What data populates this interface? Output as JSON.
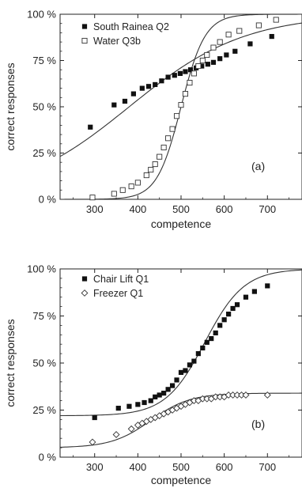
{
  "chart_data": [
    {
      "type": "scatter",
      "panel_label": "(a)",
      "xlabel": "competence",
      "ylabel": "correct responses",
      "xlim": [
        220,
        780
      ],
      "ylim": [
        0,
        100
      ],
      "xticks": [
        300,
        400,
        500,
        600,
        700
      ],
      "yticks": [
        0,
        25,
        50,
        75,
        100
      ],
      "ytick_labels": [
        "0 %",
        "25 %",
        "50 %",
        "75 %",
        "100 %"
      ],
      "legend_position": "top-left",
      "series": [
        {
          "name": "South Rainea Q2",
          "marker": "filled-square",
          "x": [
            290,
            345,
            370,
            390,
            410,
            425,
            440,
            455,
            470,
            485,
            498,
            510,
            522,
            535,
            548,
            562,
            575,
            590,
            605,
            625,
            660,
            710
          ],
          "y": [
            39,
            51,
            53,
            57,
            60,
            61,
            62,
            64,
            66,
            67,
            68,
            69,
            70,
            71,
            72,
            73,
            74,
            76,
            78,
            80,
            84,
            88
          ]
        },
        {
          "name": "Water Q3b",
          "marker": "open-square",
          "x": [
            295,
            345,
            365,
            385,
            400,
            420,
            430,
            440,
            450,
            460,
            470,
            480,
            490,
            500,
            510,
            520,
            530,
            540,
            550,
            560,
            575,
            590,
            610,
            635,
            680,
            720
          ],
          "y": [
            1,
            3,
            5,
            7,
            9,
            13,
            16,
            19,
            23,
            28,
            33,
            38,
            45,
            51,
            57,
            63,
            68,
            72,
            75,
            78,
            82,
            85,
            89,
            91,
            94,
            97
          ]
        }
      ],
      "curves": [
        {
          "series": "South Rainea Q2",
          "model": "logistic",
          "x0": 380,
          "k": 0.0075,
          "lower": 0,
          "upper": 100
        },
        {
          "series": "Water Q3b",
          "model": "logistic",
          "x0": 500,
          "k": 0.036,
          "lower": 0,
          "upper": 100
        }
      ]
    },
    {
      "type": "scatter",
      "panel_label": "(b)",
      "xlabel": "competence",
      "ylabel": "correct responses",
      "xlim": [
        220,
        780
      ],
      "ylim": [
        0,
        100
      ],
      "xticks": [
        300,
        400,
        500,
        600,
        700
      ],
      "yticks": [
        0,
        25,
        50,
        75,
        100
      ],
      "ytick_labels": [
        "0 %",
        "25 %",
        "50 %",
        "75 %",
        "100 %"
      ],
      "legend_position": "top-left",
      "series": [
        {
          "name": "Chair Lift Q1",
          "marker": "filled-square",
          "x": [
            300,
            355,
            380,
            400,
            415,
            430,
            440,
            450,
            460,
            470,
            480,
            490,
            500,
            510,
            520,
            530,
            540,
            550,
            560,
            570,
            580,
            590,
            600,
            610,
            620,
            630,
            650,
            670,
            700
          ],
          "y": [
            21,
            26,
            27,
            28,
            29,
            30,
            32,
            33,
            34,
            36,
            38,
            41,
            45,
            46,
            49,
            51,
            55,
            58,
            61,
            63,
            66,
            70,
            73,
            76,
            79,
            81,
            85,
            88,
            91
          ]
        },
        {
          "name": "Freezer Q1",
          "marker": "open-diamond",
          "x": [
            295,
            350,
            385,
            400,
            410,
            420,
            430,
            440,
            450,
            460,
            470,
            480,
            490,
            500,
            510,
            520,
            530,
            540,
            550,
            560,
            570,
            580,
            590,
            600,
            610,
            620,
            630,
            640,
            650,
            700
          ],
          "y": [
            8,
            12,
            15,
            17,
            18,
            19,
            20,
            21,
            22,
            23,
            24,
            25,
            26,
            27,
            28,
            29,
            30,
            30,
            31,
            31,
            31,
            32,
            32,
            32,
            33,
            33,
            33,
            33,
            33,
            33
          ]
        }
      ],
      "curves": [
        {
          "series": "Chair Lift Q1",
          "model": "logistic",
          "x0": 555,
          "k": 0.022,
          "lower": 22,
          "upper": 100
        },
        {
          "series": "Freezer Q1",
          "model": "logistic",
          "x0": 430,
          "k": 0.022,
          "lower": 5,
          "upper": 34
        }
      ]
    }
  ]
}
